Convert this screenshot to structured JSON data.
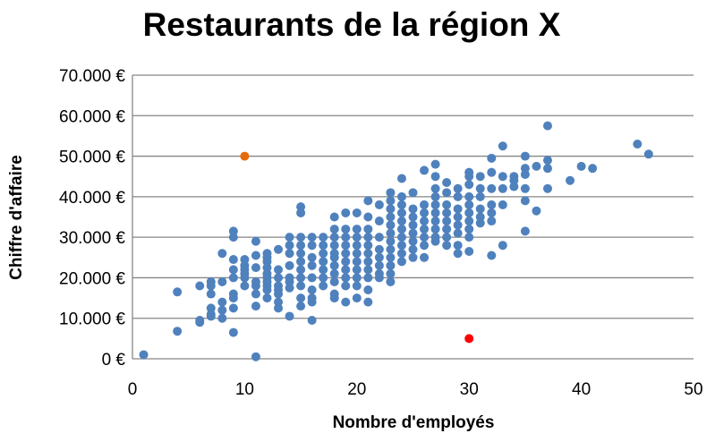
{
  "chart_data": {
    "type": "scatter",
    "title": "Restaurants de la région X",
    "xlabel": "Nombre d'employés",
    "ylabel": "Chiffre d'affaire",
    "xlim": [
      0,
      50
    ],
    "ylim": [
      0,
      70000
    ],
    "x_ticks": [
      "0",
      "10",
      "20",
      "30",
      "40",
      "50"
    ],
    "y_ticks": [
      "0 €",
      "10.000 €",
      "20.000 €",
      "30.000 €",
      "40.000 €",
      "50.000 €",
      "60.000 €",
      "70.000 €"
    ],
    "grid": "horizontal",
    "colors": {
      "main": "#4F81BD",
      "outlier_orange": "#E46C0A",
      "outlier_red": "#FF0000",
      "grid": "#868686"
    },
    "series": [
      {
        "color": "#4F81BD",
        "columns": [
          {
            "x": 1,
            "y": [
              1000
            ]
          },
          {
            "x": 4,
            "y": [
              16500,
              6800
            ]
          },
          {
            "x": 6,
            "y": [
              18000,
              9000,
              9500
            ]
          },
          {
            "x": 7,
            "y": [
              19000,
              18000,
              16000,
              12500,
              10500,
              11000
            ]
          },
          {
            "x": 8,
            "y": [
              26000,
              19000,
              14000,
              10000,
              12000
            ]
          },
          {
            "x": 9,
            "y": [
              31500,
              30000,
              24500,
              22000,
              20000,
              16000,
              15000,
              12500,
              6500
            ]
          },
          {
            "x": 10,
            "y": [
              24500,
              23000,
              22000,
              21000,
              20000,
              18000
            ]
          },
          {
            "x": 11,
            "y": [
              29000,
              25500,
              22500,
              19000,
              18000,
              16000,
              13000,
              500
            ]
          },
          {
            "x": 12,
            "y": [
              26000,
              25000,
              24000,
              22500,
              21000,
              20000,
              19000,
              18000,
              17000,
              15000
            ]
          },
          {
            "x": 13,
            "y": [
              27000,
              22000,
              20000,
              18000,
              17000,
              16000,
              14000,
              12500
            ]
          },
          {
            "x": 14,
            "y": [
              30000,
              28000,
              26000,
              23000,
              20000,
              19000,
              17500,
              10500
            ]
          },
          {
            "x": 15,
            "y": [
              37500,
              36000,
              30000,
              28000,
              26000,
              24000,
              22000,
              20000,
              18000,
              15000,
              13000
            ]
          },
          {
            "x": 16,
            "y": [
              30000,
              28000,
              25000,
              23000,
              20000,
              17000,
              15000,
              14000,
              9500
            ]
          },
          {
            "x": 17,
            "y": [
              30000,
              28000,
              26000,
              24000,
              22000,
              20000,
              18000
            ]
          },
          {
            "x": 18,
            "y": [
              35000,
              32000,
              30000,
              28000,
              26000,
              25000,
              23000,
              21000,
              19000,
              16000,
              15000
            ]
          },
          {
            "x": 19,
            "y": [
              36000,
              32000,
              30000,
              28000,
              26000,
              24000,
              22000,
              20000,
              18000,
              14000
            ]
          },
          {
            "x": 20,
            "y": [
              36000,
              32000,
              30000,
              28000,
              26000,
              24000,
              22000,
              20000,
              18000,
              15000
            ]
          },
          {
            "x": 21,
            "y": [
              39000,
              35000,
              32000,
              30000,
              28000,
              26000,
              24000,
              22000,
              20000,
              17000,
              14000
            ]
          },
          {
            "x": 22,
            "y": [
              38000,
              34000,
              30000,
              27000,
              25000,
              23000,
              21000,
              20000
            ]
          },
          {
            "x": 23,
            "y": [
              41000,
              39000,
              37000,
              35000,
              33000,
              31000,
              29000,
              27000,
              25000,
              23000,
              21000,
              19000
            ]
          },
          {
            "x": 24,
            "y": [
              44500,
              40000,
              38000,
              36000,
              34000,
              32000,
              30000,
              28000,
              26000,
              24000
            ]
          },
          {
            "x": 25,
            "y": [
              41000,
              37000,
              35000,
              33000,
              31000,
              29000,
              27000,
              25000
            ]
          },
          {
            "x": 26,
            "y": [
              46500,
              38000,
              36000,
              34000,
              32000,
              30000,
              28000,
              25000
            ]
          },
          {
            "x": 27,
            "y": [
              48000,
              45000,
              42000,
              40000,
              38000,
              36000,
              34000,
              32000,
              30000,
              29000
            ]
          },
          {
            "x": 28,
            "y": [
              43500,
              41000,
              38000,
              36000,
              34000,
              32000,
              30000,
              28000
            ]
          },
          {
            "x": 29,
            "y": [
              42000,
              40000,
              37000,
              35000,
              33000,
              31000,
              28000,
              26000
            ]
          },
          {
            "x": 30,
            "y": [
              46000,
              45000,
              43000,
              40000,
              38000,
              36000,
              34000,
              32000,
              30000,
              26500
            ]
          },
          {
            "x": 31,
            "y": [
              45000,
              42000,
              40000,
              37000,
              35000,
              33500
            ]
          },
          {
            "x": 32,
            "y": [
              49500,
              46000,
              42000,
              38000,
              36000,
              34000,
              25500
            ]
          },
          {
            "x": 33,
            "y": [
              52500,
              45000,
              42000,
              38000,
              28000
            ]
          },
          {
            "x": 34,
            "y": [
              45000,
              44000,
              42500
            ]
          },
          {
            "x": 35,
            "y": [
              50000,
              47000,
              45500,
              42000,
              39000,
              31500
            ]
          },
          {
            "x": 36,
            "y": [
              47500,
              36500
            ]
          },
          {
            "x": 37,
            "y": [
              57500,
              49000,
              47000,
              42000
            ]
          },
          {
            "x": 39,
            "y": [
              44000
            ]
          },
          {
            "x": 40,
            "y": [
              47500
            ]
          },
          {
            "x": 41,
            "y": [
              47000
            ]
          },
          {
            "x": 45,
            "y": [
              53000
            ]
          },
          {
            "x": 46,
            "y": [
              50500
            ]
          }
        ]
      },
      {
        "color": "#E46C0A",
        "columns": [
          {
            "x": 10,
            "y": [
              50000
            ]
          }
        ]
      },
      {
        "color": "#FF0000",
        "columns": [
          {
            "x": 30,
            "y": [
              5000
            ]
          }
        ]
      }
    ]
  }
}
